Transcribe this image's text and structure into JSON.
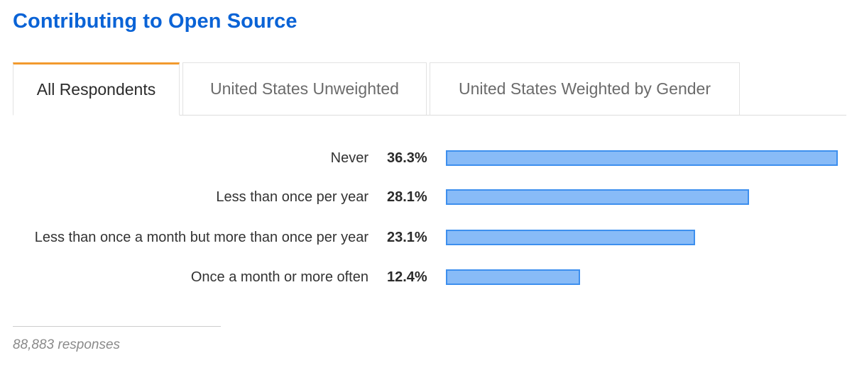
{
  "title": "Contributing to Open Source",
  "tabs": [
    {
      "label": "All Respondents",
      "active": true
    },
    {
      "label": "United States Unweighted",
      "active": false
    },
    {
      "label": "United States Weighted by Gender",
      "active": false
    }
  ],
  "colors": {
    "title": "#0a63d6",
    "active_tab_accent": "#f29a2e",
    "bar_fill": "#88bbf7",
    "bar_border": "#3d8fee"
  },
  "chart_data": {
    "type": "bar",
    "orientation": "horizontal",
    "categories": [
      "Never",
      "Less than once per year",
      "Less than once a month but more than once per year",
      "Once a month or more often"
    ],
    "values": [
      36.3,
      28.1,
      23.1,
      12.4
    ],
    "value_labels": [
      "36.3%",
      "28.1%",
      "23.1%",
      "12.4%"
    ],
    "unit": "%",
    "xlim": [
      0,
      36.3
    ]
  },
  "footer": {
    "responses": "88,883 responses"
  }
}
